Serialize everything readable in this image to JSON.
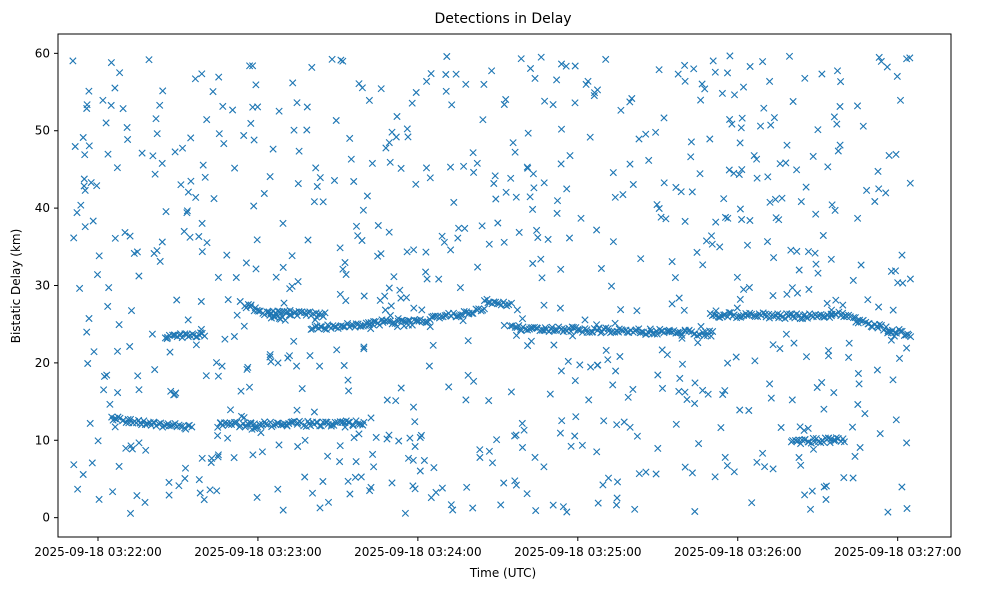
{
  "chart_data": {
    "type": "scatter",
    "title": "Detections in Delay",
    "xlabel": "Time (UTC)",
    "ylabel": "Bistatic Delay (km)",
    "marker": "x",
    "marker_color": "#1f77b4",
    "x_tick_labels": [
      "2025-09-18 03:22:00",
      "2025-09-18 03:23:00",
      "2025-09-18 03:24:00",
      "2025-09-18 03:25:00",
      "2025-09-18 03:26:00",
      "2025-09-18 03:27:00"
    ],
    "y_ticks": [
      0,
      10,
      20,
      30,
      40,
      50,
      60
    ],
    "xlim": [
      "2025-09-18 03:21:45",
      "2025-09-18 03:27:20"
    ],
    "ylim": [
      -2.5,
      62.5
    ],
    "grid": false,
    "time_start": "2025-09-18 03:21:50",
    "time_end": "2025-09-18 03:27:05",
    "series": [
      {
        "note_tracks": "dense horizontal tracks of detections",
        "tracks": [
          {
            "t0": "03:22:05",
            "t1": "03:22:35",
            "y0": 12.8,
            "y1": 11.6
          },
          {
            "t0": "03:22:25",
            "t1": "03:22:40",
            "y0": 23.4,
            "y1": 23.6
          },
          {
            "t0": "03:22:45",
            "t1": "03:23:40",
            "y0": 12.0,
            "y1": 12.2
          },
          {
            "t0": "03:22:55",
            "t1": "03:23:10",
            "y0": 27.5,
            "y1": 25.5
          },
          {
            "t0": "03:23:05",
            "t1": "03:23:25",
            "y0": 26.5,
            "y1": 26.2
          },
          {
            "t0": "03:23:20",
            "t1": "03:23:55",
            "y0": 24.5,
            "y1": 25.5
          },
          {
            "t0": "03:23:55",
            "t1": "03:24:25",
            "y0": 25.0,
            "y1": 27.0
          },
          {
            "t0": "03:24:25",
            "t1": "03:24:35",
            "y0": 28.0,
            "y1": 27.5
          },
          {
            "t0": "03:24:35",
            "t1": "03:25:50",
            "y0": 24.5,
            "y1": 23.8
          },
          {
            "t0": "03:25:50",
            "t1": "03:26:35",
            "y0": 26.2,
            "y1": 26.0
          },
          {
            "t0": "03:26:35",
            "t1": "03:27:05",
            "y0": 26.5,
            "y1": 23.5
          },
          {
            "t0": "03:26:20",
            "t1": "03:26:40",
            "y0": 9.9,
            "y1": 10.0
          }
        ]
      }
    ]
  }
}
